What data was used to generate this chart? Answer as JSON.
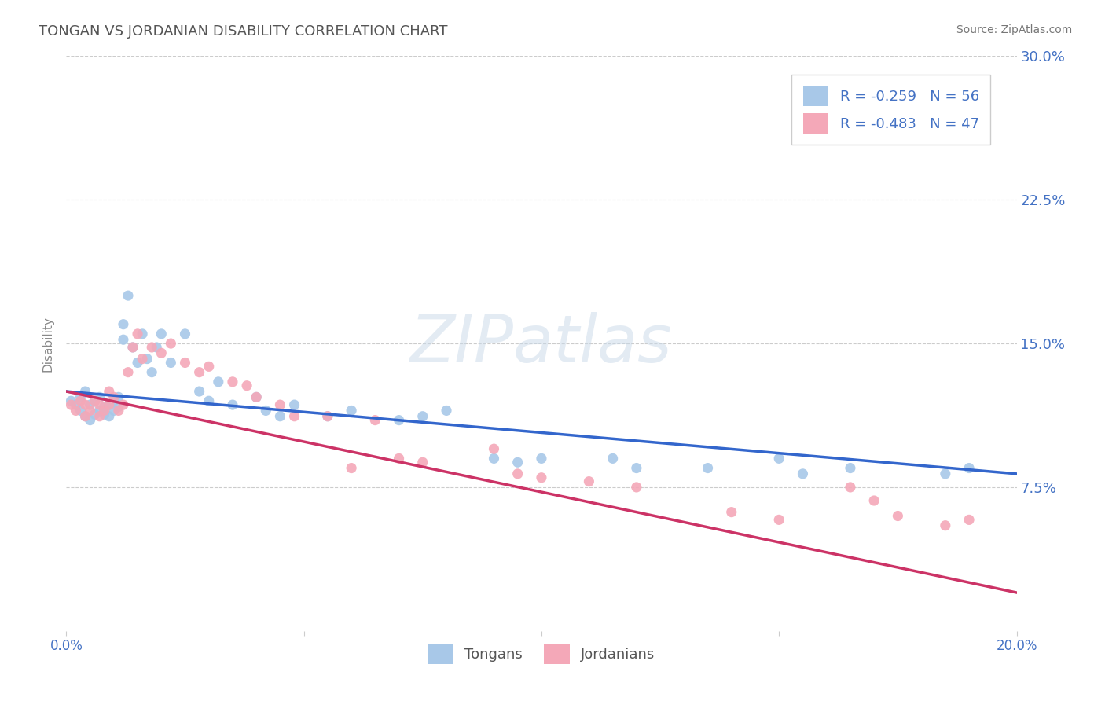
{
  "title": "TONGAN VS JORDANIAN DISABILITY CORRELATION CHART",
  "source": "Source: ZipAtlas.com",
  "ylabel_label": "Disability",
  "xlim": [
    0.0,
    0.2
  ],
  "ylim": [
    0.0,
    0.3
  ],
  "xticks": [
    0.0,
    0.05,
    0.1,
    0.15,
    0.2
  ],
  "yticks": [
    0.0,
    0.075,
    0.15,
    0.225,
    0.3
  ],
  "blue_R": -0.259,
  "blue_N": 56,
  "pink_R": -0.483,
  "pink_N": 47,
  "blue_color": "#a8c8e8",
  "pink_color": "#f4a8b8",
  "blue_line_color": "#3366cc",
  "pink_line_color": "#cc3366",
  "grid_color": "#cccccc",
  "blue_scatter_x": [
    0.001,
    0.002,
    0.003,
    0.003,
    0.004,
    0.004,
    0.005,
    0.005,
    0.006,
    0.006,
    0.007,
    0.007,
    0.008,
    0.008,
    0.009,
    0.009,
    0.01,
    0.01,
    0.011,
    0.011,
    0.012,
    0.012,
    0.013,
    0.014,
    0.015,
    0.016,
    0.017,
    0.018,
    0.019,
    0.02,
    0.022,
    0.025,
    0.028,
    0.03,
    0.032,
    0.035,
    0.04,
    0.042,
    0.045,
    0.048,
    0.055,
    0.06,
    0.07,
    0.075,
    0.08,
    0.09,
    0.095,
    0.1,
    0.115,
    0.12,
    0.135,
    0.15,
    0.155,
    0.165,
    0.185,
    0.19
  ],
  "blue_scatter_y": [
    0.12,
    0.118,
    0.115,
    0.122,
    0.112,
    0.125,
    0.11,
    0.118,
    0.113,
    0.12,
    0.115,
    0.122,
    0.117,
    0.113,
    0.118,
    0.112,
    0.12,
    0.115,
    0.122,
    0.117,
    0.152,
    0.16,
    0.175,
    0.148,
    0.14,
    0.155,
    0.142,
    0.135,
    0.148,
    0.155,
    0.14,
    0.155,
    0.125,
    0.12,
    0.13,
    0.118,
    0.122,
    0.115,
    0.112,
    0.118,
    0.112,
    0.115,
    0.11,
    0.112,
    0.115,
    0.09,
    0.088,
    0.09,
    0.09,
    0.085,
    0.085,
    0.09,
    0.082,
    0.085,
    0.082,
    0.085
  ],
  "pink_scatter_x": [
    0.001,
    0.002,
    0.003,
    0.004,
    0.004,
    0.005,
    0.006,
    0.007,
    0.007,
    0.008,
    0.009,
    0.009,
    0.01,
    0.011,
    0.012,
    0.013,
    0.014,
    0.015,
    0.016,
    0.018,
    0.02,
    0.022,
    0.025,
    0.028,
    0.03,
    0.035,
    0.038,
    0.04,
    0.045,
    0.048,
    0.055,
    0.06,
    0.065,
    0.07,
    0.075,
    0.09,
    0.095,
    0.1,
    0.11,
    0.12,
    0.14,
    0.15,
    0.165,
    0.17,
    0.175,
    0.185,
    0.19
  ],
  "pink_scatter_y": [
    0.118,
    0.115,
    0.12,
    0.112,
    0.118,
    0.115,
    0.12,
    0.112,
    0.118,
    0.115,
    0.125,
    0.118,
    0.122,
    0.115,
    0.118,
    0.135,
    0.148,
    0.155,
    0.142,
    0.148,
    0.145,
    0.15,
    0.14,
    0.135,
    0.138,
    0.13,
    0.128,
    0.122,
    0.118,
    0.112,
    0.112,
    0.085,
    0.11,
    0.09,
    0.088,
    0.095,
    0.082,
    0.08,
    0.078,
    0.075,
    0.062,
    0.058,
    0.075,
    0.068,
    0.06,
    0.055,
    0.058
  ],
  "watermark_text": "ZIPatlas",
  "legend_label_blue": "Tongans",
  "legend_label_pink": "Jordanians",
  "title_color": "#555555",
  "tick_color": "#4472c4",
  "source_color": "#777777"
}
